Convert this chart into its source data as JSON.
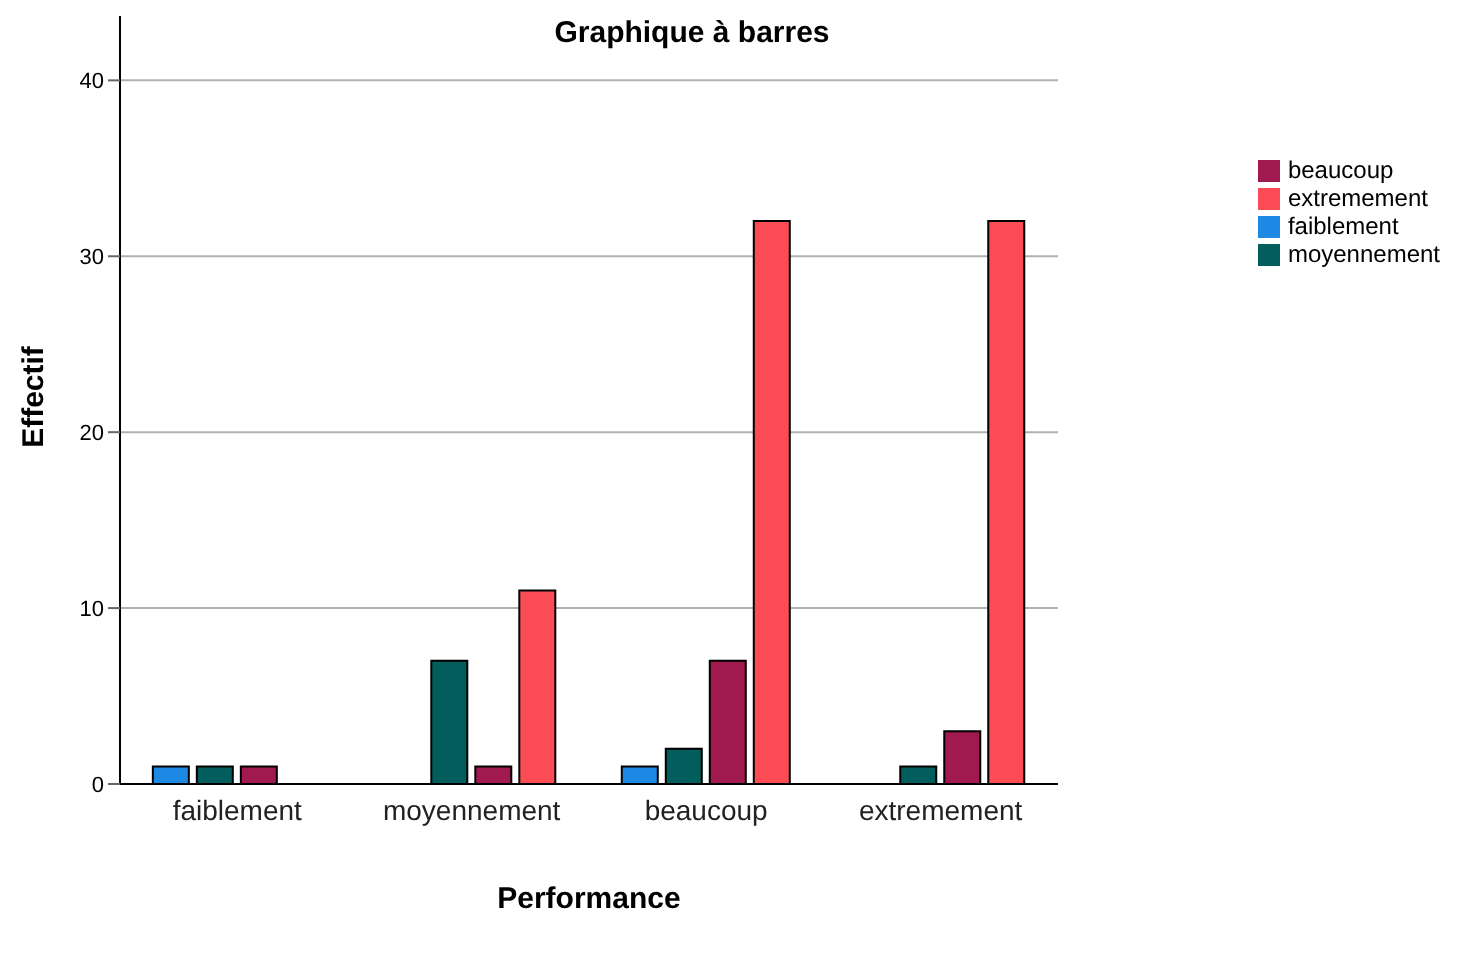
{
  "chart_data": {
    "type": "bar",
    "title": "Graphique à barres",
    "xlabel": "Performance",
    "ylabel": "Effectif",
    "categories": [
      "faiblement",
      "moyennement",
      "beaucoup",
      "extremement"
    ],
    "series": [
      {
        "name": "faiblement",
        "color": "#1e88e5",
        "values": [
          1,
          null,
          1,
          null
        ]
      },
      {
        "name": "moyennement",
        "color": "#025e5c",
        "values": [
          1,
          7,
          2,
          1
        ]
      },
      {
        "name": "beaucoup",
        "color": "#a0194f",
        "values": [
          1,
          1,
          7,
          3
        ]
      },
      {
        "name": "extremement",
        "color": "#fb4b55",
        "values": [
          null,
          11,
          32,
          32
        ]
      }
    ],
    "ylim": [
      0,
      44
    ],
    "yticks": [
      0,
      10,
      20,
      30,
      40
    ],
    "grid": "y",
    "legend": "top right"
  }
}
